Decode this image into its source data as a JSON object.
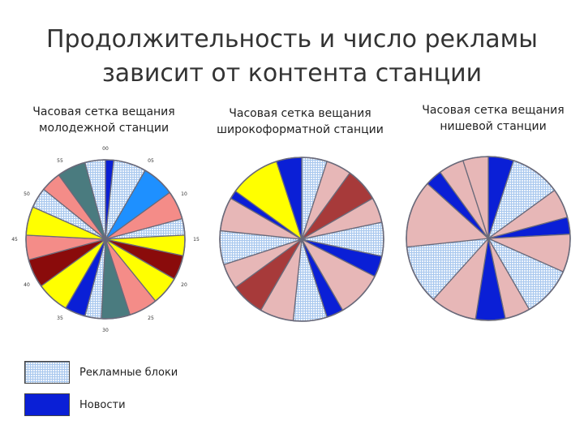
{
  "slide": {
    "title_line1": "Продолжительность и число рекламы",
    "title_line2": "зависит от контента станции"
  },
  "colors": {
    "ads_blue": "#a9c8ee",
    "ads_bg": "#eef4fc",
    "news": "#0a1fd6",
    "pink": "#e7b7b7",
    "salmon": "#f48c88",
    "yellow": "#ffff00",
    "maroon": "#8a0b0b",
    "teal": "#4a7b7f",
    "sky": "#1e90ff",
    "darkred": "#a73a3a"
  },
  "charts": [
    {
      "caption_line1": "Часовая сетка вещания",
      "caption_line2": "молодежной станции",
      "ticks": [
        "00",
        "05",
        "10",
        "15",
        "20",
        "25",
        "30",
        "35",
        "40",
        "45",
        "50",
        "55"
      ],
      "segments": [
        {
          "from": 0,
          "to": 1,
          "fill": "news",
          "cat": "news"
        },
        {
          "from": 1,
          "to": 5,
          "fill": "ads",
          "cat": "ads"
        },
        {
          "from": 5,
          "to": 9,
          "fill": "sky",
          "cat": "music"
        },
        {
          "from": 9,
          "to": 12.5,
          "fill": "salmon",
          "cat": "music"
        },
        {
          "from": 12.5,
          "to": 14.5,
          "fill": "ads",
          "cat": "ads"
        },
        {
          "from": 14.5,
          "to": 17,
          "fill": "yellow",
          "cat": "music"
        },
        {
          "from": 17,
          "to": 20,
          "fill": "maroon",
          "cat": "music"
        },
        {
          "from": 20,
          "to": 23.5,
          "fill": "yellow",
          "cat": "music"
        },
        {
          "from": 23.5,
          "to": 27,
          "fill": "salmon",
          "cat": "music"
        },
        {
          "from": 27,
          "to": 30.5,
          "fill": "teal",
          "cat": "music"
        },
        {
          "from": 30.5,
          "to": 32.5,
          "fill": "ads",
          "cat": "ads"
        },
        {
          "from": 32.5,
          "to": 35,
          "fill": "news",
          "cat": "news"
        },
        {
          "from": 35,
          "to": 39,
          "fill": "yellow",
          "cat": "music"
        },
        {
          "from": 39,
          "to": 42.5,
          "fill": "maroon",
          "cat": "music"
        },
        {
          "from": 42.5,
          "to": 45.5,
          "fill": "salmon",
          "cat": "music"
        },
        {
          "from": 45.5,
          "to": 49,
          "fill": "yellow",
          "cat": "music"
        },
        {
          "from": 49,
          "to": 51.5,
          "fill": "ads",
          "cat": "ads"
        },
        {
          "from": 51.5,
          "to": 54,
          "fill": "salmon",
          "cat": "music"
        },
        {
          "from": 54,
          "to": 57.5,
          "fill": "teal",
          "cat": "music"
        },
        {
          "from": 57.5,
          "to": 60,
          "fill": "ads",
          "cat": "ads"
        }
      ]
    },
    {
      "caption_line1": "Часовая сетка вещания",
      "caption_line2": "широкоформатной станции",
      "ticks": [],
      "segments": [
        {
          "from": 0,
          "to": 3,
          "fill": "ads",
          "cat": "ads"
        },
        {
          "from": 3,
          "to": 6,
          "fill": "pink",
          "cat": "program"
        },
        {
          "from": 6,
          "to": 10,
          "fill": "darkred",
          "cat": "program"
        },
        {
          "from": 10,
          "to": 13,
          "fill": "pink",
          "cat": "program"
        },
        {
          "from": 13,
          "to": 17,
          "fill": "ads",
          "cat": "ads"
        },
        {
          "from": 17,
          "to": 19.5,
          "fill": "news",
          "cat": "news"
        },
        {
          "from": 19.5,
          "to": 25,
          "fill": "pink",
          "cat": "program"
        },
        {
          "from": 25,
          "to": 27,
          "fill": "news",
          "cat": "news"
        },
        {
          "from": 27,
          "to": 31,
          "fill": "ads",
          "cat": "ads"
        },
        {
          "from": 31,
          "to": 35,
          "fill": "pink",
          "cat": "program"
        },
        {
          "from": 35,
          "to": 39,
          "fill": "darkred",
          "cat": "program"
        },
        {
          "from": 39,
          "to": 42,
          "fill": "pink",
          "cat": "program"
        },
        {
          "from": 42,
          "to": 46,
          "fill": "ads",
          "cat": "ads"
        },
        {
          "from": 46,
          "to": 50,
          "fill": "pink",
          "cat": "program"
        },
        {
          "from": 50,
          "to": 51,
          "fill": "news",
          "cat": "news"
        },
        {
          "from": 51,
          "to": 57,
          "fill": "yellow",
          "cat": "program"
        },
        {
          "from": 57,
          "to": 60,
          "fill": "news",
          "cat": "news"
        }
      ]
    },
    {
      "caption_line1": "Часовая сетка вещания",
      "caption_line2": "нишевой станции",
      "ticks": [],
      "segments": [
        {
          "from": 0,
          "to": 3,
          "fill": "news",
          "cat": "news"
        },
        {
          "from": 3,
          "to": 9,
          "fill": "ads",
          "cat": "ads"
        },
        {
          "from": 9,
          "to": 12.5,
          "fill": "pink",
          "cat": "program"
        },
        {
          "from": 12.5,
          "to": 14.5,
          "fill": "news",
          "cat": "news"
        },
        {
          "from": 14.5,
          "to": 19,
          "fill": "pink",
          "cat": "program"
        },
        {
          "from": 19,
          "to": 25,
          "fill": "ads",
          "cat": "ads"
        },
        {
          "from": 25,
          "to": 28,
          "fill": "pink",
          "cat": "program"
        },
        {
          "from": 28,
          "to": 31.5,
          "fill": "news",
          "cat": "news"
        },
        {
          "from": 31.5,
          "to": 37,
          "fill": "pink",
          "cat": "program"
        },
        {
          "from": 37,
          "to": 44,
          "fill": "ads",
          "cat": "ads"
        },
        {
          "from": 44,
          "to": 52,
          "fill": "pink",
          "cat": "program"
        },
        {
          "from": 52,
          "to": 54,
          "fill": "news",
          "cat": "news"
        },
        {
          "from": 54,
          "to": 57,
          "fill": "pink",
          "cat": "program"
        },
        {
          "from": 57,
          "to": 60,
          "fill": "pink",
          "cat": "program"
        }
      ]
    }
  ],
  "legend": [
    {
      "label": "Рекламные блоки",
      "swatch": "ads-swatch"
    },
    {
      "label": "Новости",
      "swatch": "news-swatch"
    }
  ]
}
